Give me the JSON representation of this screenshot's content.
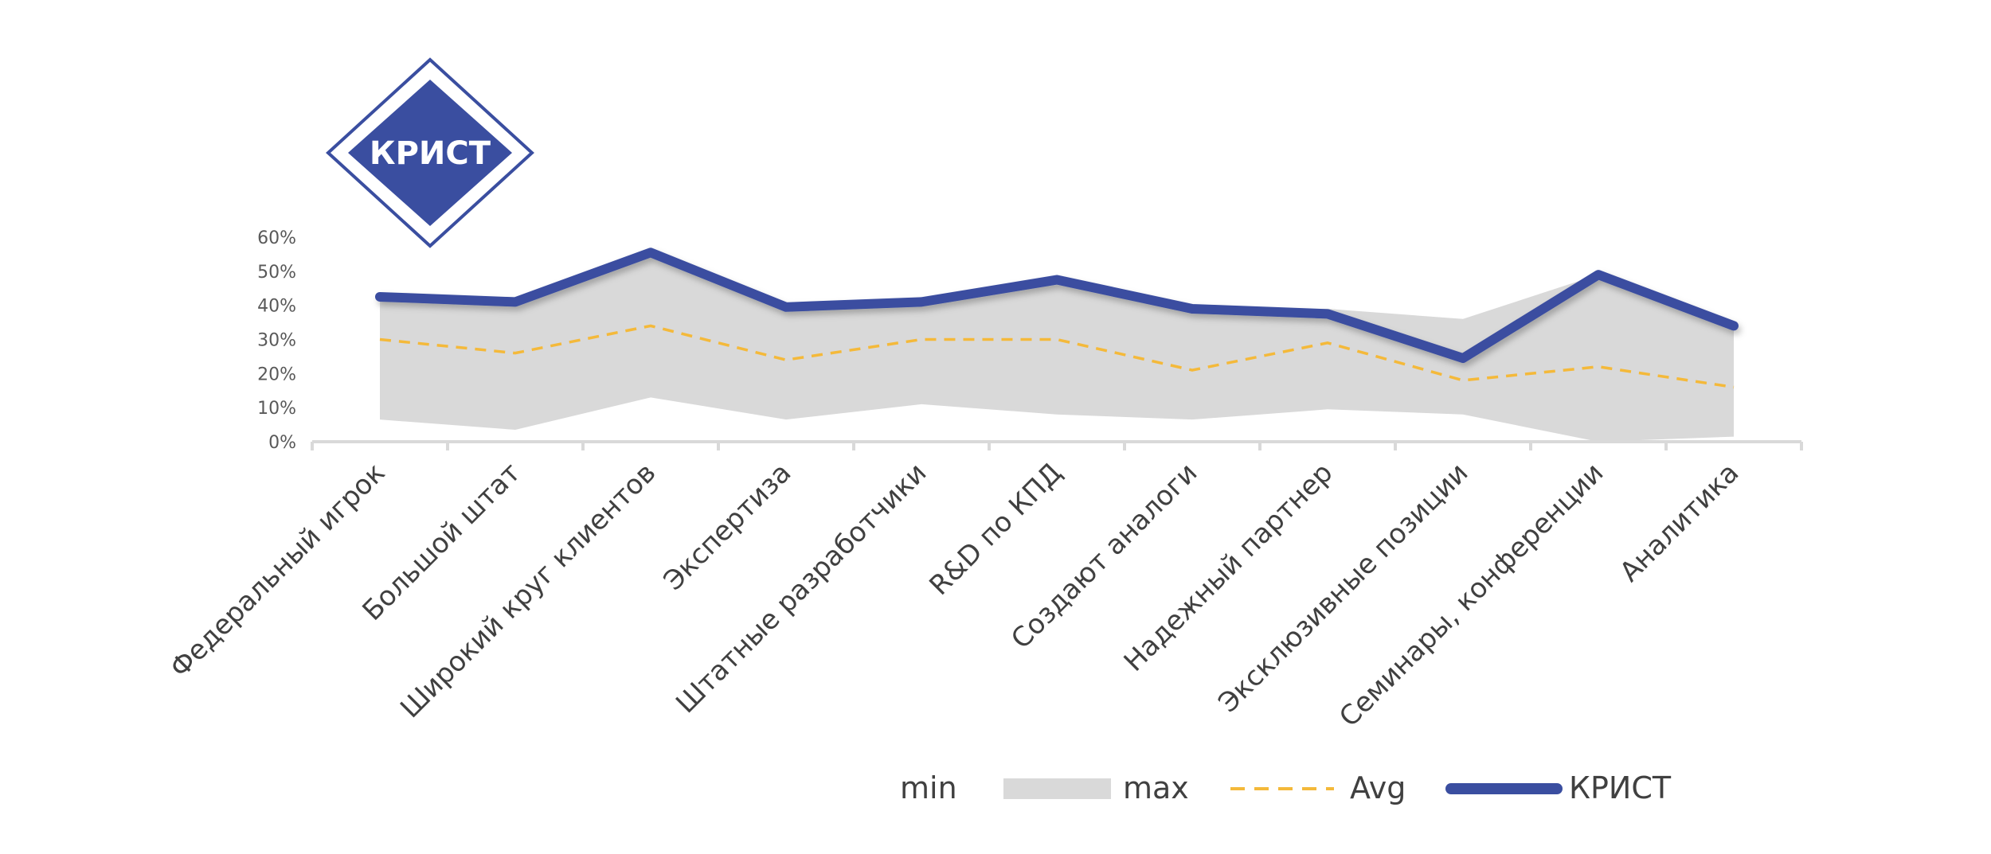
{
  "logo": {
    "text": "КРИСТ",
    "color": "#3A4EA0"
  },
  "chart_data": {
    "type": "area",
    "categories": [
      "Федеральный игрок",
      "Большой штат",
      "Широкий круг клиентов",
      "Экспертиза",
      "Штатные разработчики",
      "R&D по КПД",
      "Создают аналоги",
      "Надежный партнер",
      "Эксклюзивные позиции",
      "Семинары, конференции",
      "Аналитика"
    ],
    "yticks": [
      "0%",
      "10%",
      "20%",
      "30%",
      "40%",
      "50%",
      "60%"
    ],
    "ylim": [
      0,
      60
    ],
    "series": [
      {
        "name": "min",
        "values": [
          6.5,
          3.5,
          13,
          6.5,
          11,
          8,
          6.5,
          9.5,
          8,
          0,
          1.5
        ]
      },
      {
        "name": "max",
        "values": [
          42,
          41,
          55,
          39,
          41,
          46,
          39,
          39,
          36,
          49,
          35
        ],
        "color": "#D9D9D9"
      },
      {
        "name": "Avg",
        "values": [
          30,
          26,
          34,
          24,
          30,
          30,
          21,
          29,
          18,
          22,
          16
        ],
        "color": "#F4B93A"
      },
      {
        "name": "КРИСТ",
        "values": [
          42.5,
          41,
          55.5,
          39.5,
          41,
          47.5,
          39,
          37.5,
          24.5,
          49,
          34
        ],
        "color": "#3A4EA0"
      }
    ],
    "legend_position": "bottom-right",
    "grid": false
  }
}
